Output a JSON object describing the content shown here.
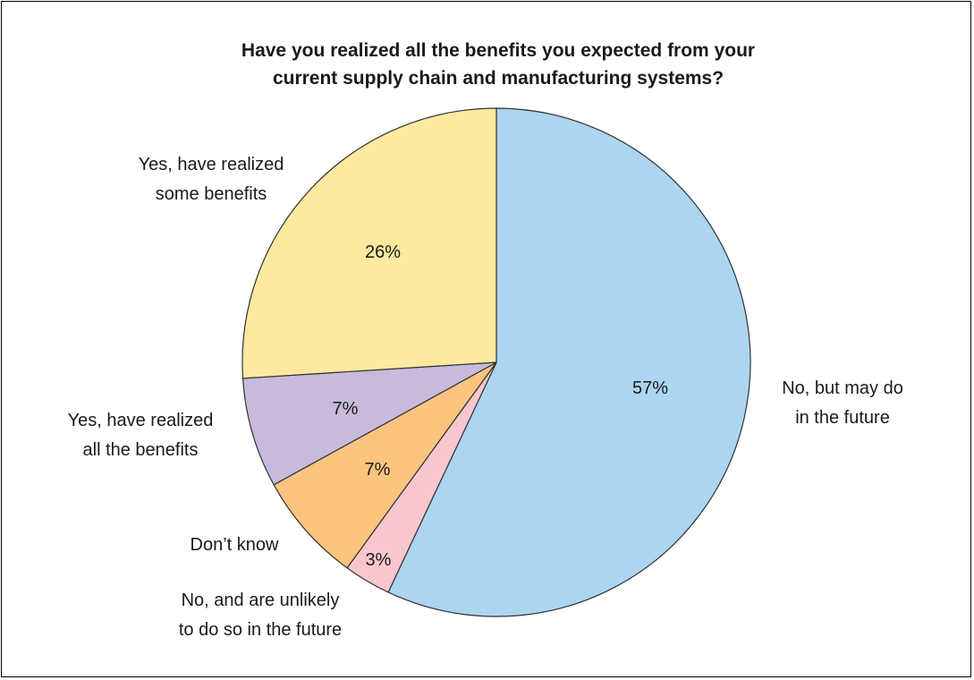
{
  "chart_data": {
    "type": "pie",
    "title_lines": [
      "Have you realized all the benefits you expected from your",
      "current supply chain and manufacturing systems?"
    ],
    "slices": [
      {
        "label_lines": [
          "No, but may do",
          "in the future"
        ],
        "value": 57,
        "value_label": "57%",
        "color": "#abd5f1"
      },
      {
        "label_lines": [
          "No, and are unlikely",
          "to do so in the future"
        ],
        "value": 3,
        "value_label": "3%",
        "color": "#f8c7cd"
      },
      {
        "label_lines": [
          "Don’t know"
        ],
        "value": 7,
        "value_label": "7%",
        "color": "#fbc57f"
      },
      {
        "label_lines": [
          "Yes, have realized",
          "all the benefits"
        ],
        "value": 7,
        "value_label": "7%",
        "color": "#c8badb"
      },
      {
        "label_lines": [
          "Yes, have realized",
          "some benefits"
        ],
        "value": 26,
        "value_label": "26%",
        "color": "#fde99f"
      }
    ],
    "start_angle": "12 o'clock",
    "direction": "clockwise",
    "legend": "none"
  }
}
